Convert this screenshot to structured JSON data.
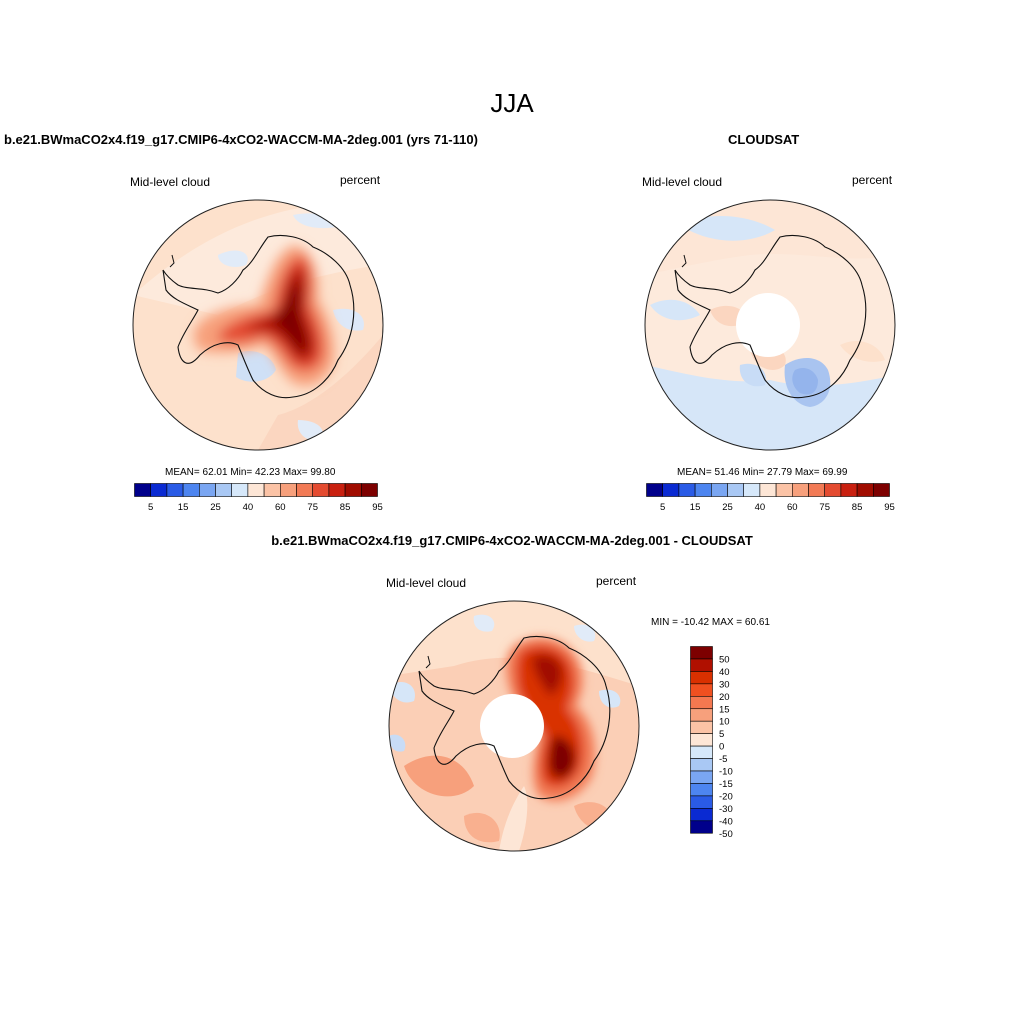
{
  "title": "JJA",
  "panels": [
    {
      "title": "b.e21.BWmaCO2x4.f19_g17.CMIP6-4xCO2-WACCM-MA-2deg.001 (yrs 71-110)",
      "variable": "Mid-level cloud",
      "units": "percent",
      "stats_text": "MEAN=  62.01  Min=  42.23  Max=  99.80"
    },
    {
      "title": "CLOUDSAT",
      "variable": "Mid-level cloud",
      "units": "percent",
      "stats_text": "MEAN=  51.46  Min=  27.79  Max=  69.99"
    },
    {
      "title": "b.e21.BWmaCO2x4.f19_g17.CMIP6-4xCO2-WACCM-MA-2deg.001 - CLOUDSAT",
      "variable": "Mid-level cloud",
      "units": "percent",
      "stats_text": "MIN = -10.42 MAX =  60.61"
    }
  ],
  "abs_colorbar": {
    "ticks": [
      "5",
      "15",
      "25",
      "40",
      "60",
      "75",
      "85",
      "95"
    ],
    "colors": [
      "#00008b",
      "#0a2ad2",
      "#2a5be6",
      "#4d85f0",
      "#7aa6f2",
      "#a9c8f4",
      "#d6e8fa",
      "#fde6d6",
      "#fbc3a6",
      "#f7a07c",
      "#f27a55",
      "#e44b30",
      "#c92010",
      "#a00c00",
      "#7d0000"
    ]
  },
  "diff_colorbar": {
    "ticks": [
      "50",
      "40",
      "30",
      "20",
      "15",
      "10",
      "5",
      "0",
      "-5",
      "-10",
      "-15",
      "-20",
      "-30",
      "-40",
      "-50"
    ],
    "colors": [
      "#7d0000",
      "#b01000",
      "#d93000",
      "#f05020",
      "#f57850",
      "#f7a07c",
      "#fbc3a6",
      "#fde6d6",
      "#d6e8fa",
      "#a9c8f4",
      "#7aa6f2",
      "#4d85f0",
      "#2a5be6",
      "#0a2ad2",
      "#00008b"
    ]
  }
}
